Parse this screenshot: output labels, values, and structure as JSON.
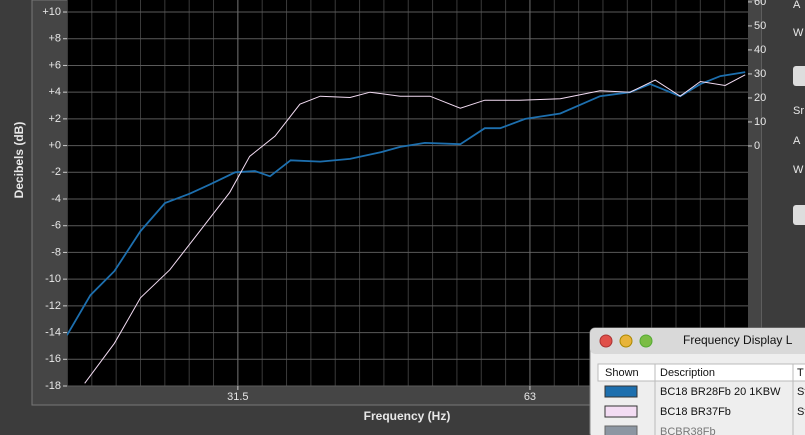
{
  "chart_data": {
    "type": "line",
    "xlabel": "Frequency (Hz)",
    "ylabel": "Decibels (dB)",
    "xscale": "log",
    "grid": true,
    "xlim": [
      21.0,
      105.7
    ],
    "xticks": [
      31.5,
      63
    ],
    "ylim": [
      -18,
      10.9
    ],
    "yticks": [
      {
        "value": 10,
        "label": "+10"
      },
      {
        "value": 8,
        "label": "+8"
      },
      {
        "value": 6,
        "label": "+6"
      },
      {
        "value": 4,
        "label": "+4"
      },
      {
        "value": 2,
        "label": "+2"
      },
      {
        "value": 0,
        "label": "+0"
      },
      -2,
      -4,
      -6,
      -8,
      -10,
      -12,
      -14,
      -16,
      -18
    ],
    "y2lim": [
      -100,
      60.8
    ],
    "y2ticks": [
      0,
      10,
      20,
      30,
      40,
      50,
      60
    ],
    "series": [
      {
        "name": "BC18 BR28Fb 20 1KBW",
        "color": "#1d6fae",
        "x": [
          21.0,
          22.2,
          23.5,
          25.0,
          26.5,
          28.1,
          29.5,
          31.3,
          32.8,
          34.0,
          35.7,
          38.3,
          41.1,
          44.2,
          46.3,
          49.1,
          53.4,
          56.6,
          58.7,
          62.3,
          67.7,
          74.4,
          79.9,
          83.8,
          90.0,
          94.4,
          99.0,
          105.0
        ],
        "values": [
          -14.2,
          -11.2,
          -9.4,
          -6.4,
          -4.3,
          -3.6,
          -2.9,
          -2.0,
          -1.9,
          -2.3,
          -1.1,
          -1.2,
          -1.0,
          -0.5,
          -0.1,
          0.2,
          0.1,
          1.3,
          1.3,
          2.0,
          2.4,
          3.7,
          4.0,
          4.6,
          3.7,
          4.6,
          5.2,
          5.5
        ]
      },
      {
        "name": "BC18 BR37Fb",
        "color": "#f3dcf3",
        "x": [
          21.9,
          23.5,
          25.0,
          26.8,
          28.5,
          30.9,
          32.4,
          34.4,
          36.5,
          38.3,
          41.1,
          43.1,
          46.3,
          49.7,
          53.4,
          56.6,
          61.5,
          67.7,
          74.4,
          79.9,
          84.8,
          90.0,
          94.4,
          100.1,
          105.0
        ],
        "values": [
          -17.8,
          -14.8,
          -11.4,
          -9.3,
          -6.8,
          -3.5,
          -0.8,
          0.7,
          3.1,
          3.7,
          3.6,
          4.0,
          3.7,
          3.7,
          2.8,
          3.4,
          3.4,
          3.5,
          4.1,
          4.0,
          4.9,
          3.7,
          4.8,
          4.5,
          5.3
        ]
      }
    ]
  },
  "window": {
    "title": "Frequency Display L",
    "columns": [
      "Shown",
      "Description",
      "T"
    ],
    "rows": [
      {
        "type": "St"
      },
      {
        "type": "St"
      },
      {
        "description": "BCBR38Fb",
        "color": "#8c96a2"
      }
    ]
  },
  "side_labels": [
    "A",
    "W",
    "Sr",
    "A",
    "W"
  ]
}
